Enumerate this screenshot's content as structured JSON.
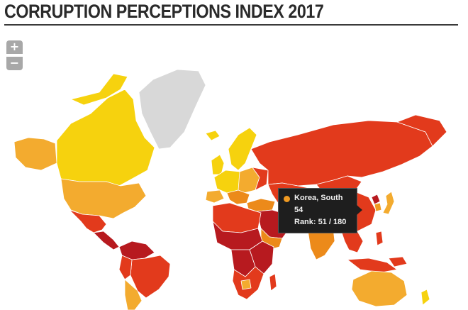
{
  "header": {
    "title": "CORRUPTION PERCEPTIONS INDEX 2017"
  },
  "zoom": {
    "in_label": "+",
    "out_label": "−"
  },
  "colors": {
    "very_clean": "#f6d20e",
    "clean": "#f3ab2f",
    "mid": "#ec8a1a",
    "corrupt": "#e23a1c",
    "very_corrupt": "#b71a1f",
    "no_data": "#d8d8d8",
    "highlight": "#f09a22"
  },
  "tooltip": {
    "country": "Korea, South",
    "score": "54",
    "rank": "Rank: 51 / 180"
  }
}
